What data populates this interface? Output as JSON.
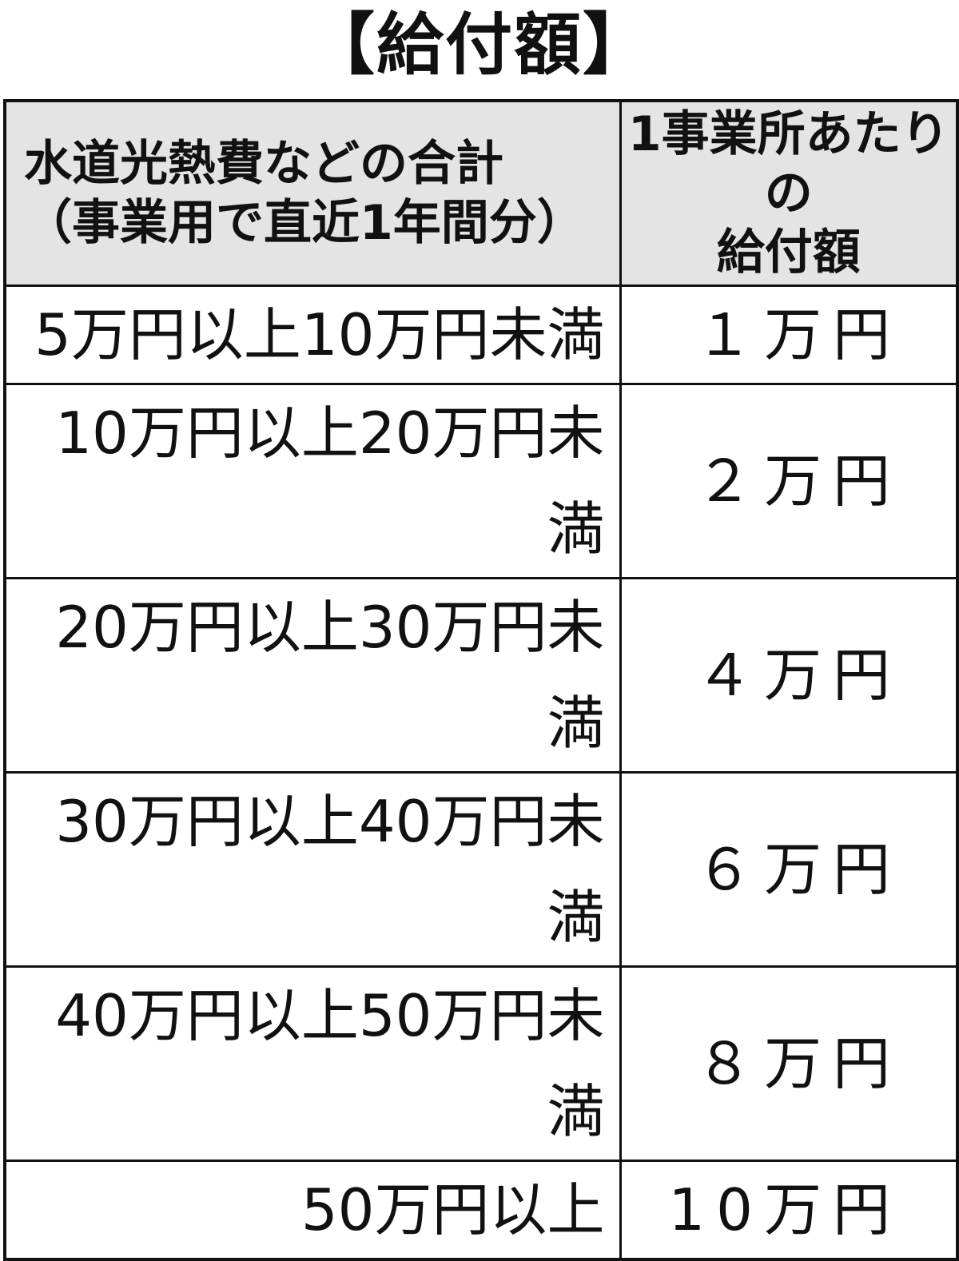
{
  "title": "【給付額】",
  "header": {
    "col1_line1": "水道光熱費などの合計",
    "col1_line2": "（事業用で直近1年間分）",
    "col2_line1": "1事業所あたりの",
    "col2_line2": "給付額"
  },
  "colors": {
    "header_bg": "#e4e4e4",
    "border": "#111111"
  },
  "rows": [
    {
      "range": "5万円以上10万円未満",
      "amount": "１万円"
    },
    {
      "range": "10万円以上20万円未満",
      "amount": "２万円"
    },
    {
      "range": "20万円以上30万円未満",
      "amount": "４万円"
    },
    {
      "range": "30万円以上40万円未満",
      "amount": "６万円"
    },
    {
      "range": "40万円以上50万円未満",
      "amount": "８万円"
    },
    {
      "range": "50万円以上",
      "amount": "10万円"
    }
  ]
}
